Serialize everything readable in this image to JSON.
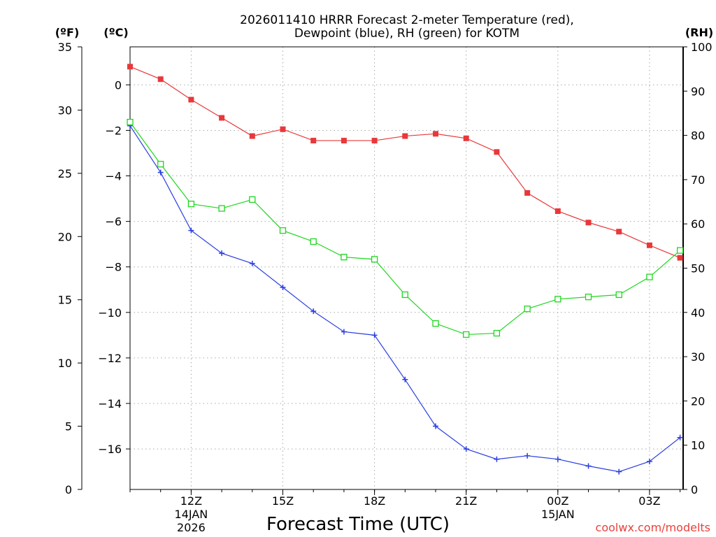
{
  "chart_data": {
    "type": "line",
    "title_lines": [
      "2026011410 HRRR Forecast 2-meter Temperature (red),",
      "Dewpoint (blue), RH (green) for KOTM"
    ],
    "xlabel": "Forecast Time (UTC)",
    "credit": "coolwx.com/modelts",
    "axis_units": {
      "fahrenheit": "(ºF)",
      "celsius": "(ºC)",
      "rh": "(RH)"
    },
    "x_hours_start_utc": 10,
    "x": [
      10,
      11,
      12,
      13,
      14,
      15,
      16,
      17,
      18,
      19,
      20,
      21,
      22,
      23,
      24,
      25,
      26,
      27,
      28
    ],
    "xlim": [
      10,
      28.1
    ],
    "x_ticks": [
      {
        "hour": 12,
        "lines": [
          "12Z",
          "14JAN",
          "2026"
        ]
      },
      {
        "hour": 15,
        "lines": [
          "15Z"
        ]
      },
      {
        "hour": 18,
        "lines": [
          "18Z"
        ]
      },
      {
        "hour": 21,
        "lines": [
          "21Z"
        ]
      },
      {
        "hour": 24,
        "lines": [
          "00Z",
          "15JAN"
        ]
      },
      {
        "hour": 27,
        "lines": [
          "03Z"
        ]
      }
    ],
    "f_axis": {
      "range": [
        0,
        35
      ],
      "ticks": [
        "0",
        "5",
        "10",
        "15",
        "20",
        "25",
        "30",
        "35"
      ]
    },
    "c_axis": {
      "range": [
        -17.78,
        1.67
      ],
      "ticks": [
        "0",
        "−2",
        "−4",
        "−6",
        "−8",
        "−10",
        "−12",
        "−14",
        "−16"
      ]
    },
    "rh_axis": {
      "range": [
        0,
        100
      ],
      "ticks": [
        "0",
        "10",
        "20",
        "30",
        "40",
        "50",
        "60",
        "70",
        "80",
        "90",
        "100"
      ]
    },
    "grid": true,
    "series": [
      {
        "name": "2-meter Temperature",
        "axis": "celsius",
        "color": "#e8383a",
        "marker": "filled-square",
        "values": [
          0.8,
          0.25,
          -0.65,
          -1.45,
          -2.25,
          -1.95,
          -2.45,
          -2.45,
          -2.45,
          -2.25,
          -2.15,
          -2.35,
          -2.95,
          -4.75,
          -5.55,
          -6.05,
          -6.45,
          -7.05,
          -7.6
        ]
      },
      {
        "name": "Dewpoint",
        "axis": "celsius",
        "color": "#2a3ee0",
        "marker": "plus",
        "values": [
          -1.8,
          -3.85,
          -6.4,
          -7.4,
          -7.85,
          -8.9,
          -9.95,
          -10.85,
          -11.0,
          -12.95,
          -15.0,
          -16.0,
          -16.45,
          -16.3,
          -16.45,
          -16.75,
          -17.0,
          -16.55,
          -15.5
        ]
      },
      {
        "name": "RH",
        "axis": "rh",
        "color": "#1fd61f",
        "marker": "open-square",
        "values": [
          83,
          73.5,
          64.5,
          63.5,
          65.5,
          58.5,
          56,
          52.5,
          52,
          44,
          37.5,
          35,
          35.3,
          40.8,
          43,
          43.5,
          44,
          48,
          54
        ]
      }
    ]
  }
}
